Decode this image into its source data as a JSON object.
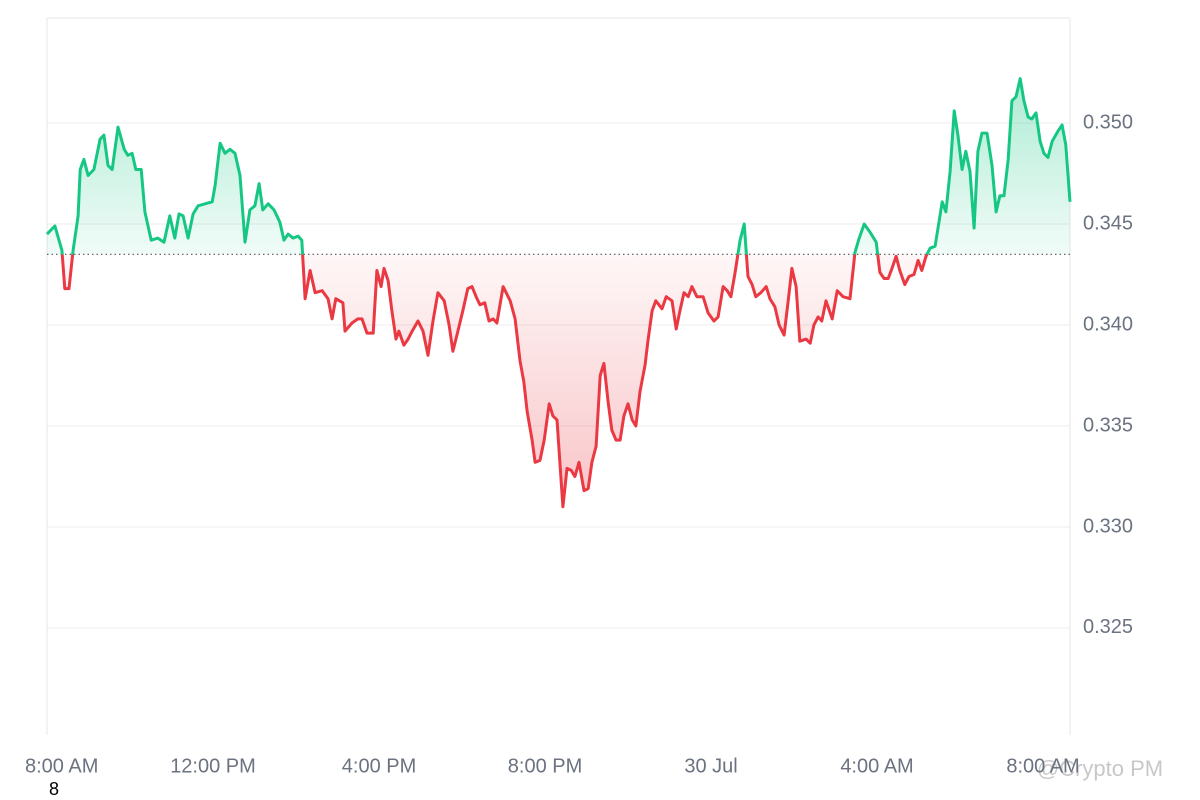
{
  "chart_data": {
    "type": "line",
    "x": [
      0,
      0.19,
      0.36,
      0.43,
      0.53,
      0.63,
      0.75,
      0.8,
      0.89,
      0.99,
      1.13,
      1.28,
      1.37,
      1.47,
      1.57,
      1.71,
      1.86,
      1.95,
      2.05,
      2.14,
      2.27,
      2.36,
      2.51,
      2.67,
      2.82,
      2.96,
      3.08,
      3.18,
      3.28,
      3.4,
      3.52,
      3.64,
      3.81,
      3.98,
      4.05,
      4.17,
      4.29,
      4.41,
      4.53,
      4.65,
      4.77,
      4.89,
      5.01,
      5.11,
      5.2,
      5.33,
      5.47,
      5.61,
      5.71,
      5.81,
      5.93,
      6.05,
      6.14,
      6.22,
      6.34,
      6.46,
      6.63,
      6.77,
      6.87,
      6.96,
      7.13,
      7.18,
      7.35,
      7.49,
      7.59,
      7.71,
      7.86,
      7.95,
      8.05,
      8.12,
      8.22,
      8.31,
      8.41,
      8.48,
      8.6,
      8.7,
      8.8,
      8.94,
      9.06,
      9.18,
      9.3,
      9.42,
      9.57,
      9.69,
      9.78,
      9.9,
      10.02,
      10.14,
      10.24,
      10.34,
      10.43,
      10.55,
      10.65,
      10.75,
      10.84,
      10.99,
      11.16,
      11.28,
      11.4,
      11.49,
      11.57,
      11.69,
      11.76,
      11.88,
      11.98,
      12.1,
      12.19,
      12.29,
      12.43,
      12.53,
      12.63,
      12.72,
      12.82,
      12.94,
      13.04,
      13.13,
      13.23,
      13.33,
      13.42,
      13.52,
      13.61,
      13.71,
      13.81,
      13.9,
      14.0,
      14.1,
      14.19,
      14.29,
      14.41,
      14.48,
      14.58,
      14.67,
      14.82,
      14.92,
      15.06,
      15.16,
      15.25,
      15.35,
      15.45,
      15.54,
      15.66,
      15.81,
      15.93,
      16.07,
      16.17,
      16.29,
      16.39,
      16.48,
      16.58,
      16.7,
      16.8,
      16.89,
      16.99,
      17.08,
      17.2,
      17.33,
      17.42,
      17.54,
      17.64,
      17.76,
      17.86,
      17.95,
      18.05,
      18.14,
      18.29,
      18.39,
      18.48,
      18.58,
      18.67,
      18.77,
      18.92,
      19.04,
      19.18,
      19.35,
      19.47,
      19.57,
      19.69,
      19.83,
      19.98,
      20.07,
      20.17,
      20.27,
      20.36,
      20.46,
      20.55,
      20.67,
      20.77,
      20.89,
      20.99,
      21.08,
      21.18,
      21.28,
      21.4,
      21.47,
      21.57,
      21.66,
      21.76,
      21.86,
      21.95,
      22.05,
      22.14,
      22.24,
      22.34,
      22.43,
      22.53,
      22.65,
      22.77,
      22.87,
      22.96,
      23.06,
      23.16,
      23.25,
      23.35,
      23.45,
      23.54,
      23.64,
      23.73,
      23.83,
      23.93,
      24.02,
      24.12,
      24.22,
      24.36,
      24.46,
      24.55,
      24.65
    ],
    "values": [
      0.3445,
      0.3449,
      0.3437,
      0.3418,
      0.3418,
      0.3437,
      0.3454,
      0.3477,
      0.3482,
      0.3474,
      0.3477,
      0.3492,
      0.3494,
      0.3479,
      0.3477,
      0.3498,
      0.3487,
      0.3484,
      0.3485,
      0.3477,
      0.3477,
      0.3456,
      0.3442,
      0.3443,
      0.3441,
      0.3454,
      0.3443,
      0.3455,
      0.3454,
      0.3443,
      0.3455,
      0.3459,
      0.346,
      0.3461,
      0.3469,
      0.349,
      0.3485,
      0.3487,
      0.3485,
      0.3474,
      0.3441,
      0.3457,
      0.3459,
      0.347,
      0.3457,
      0.346,
      0.3457,
      0.3451,
      0.3442,
      0.3445,
      0.3443,
      0.3444,
      0.3442,
      0.3413,
      0.3427,
      0.3416,
      0.3417,
      0.3413,
      0.3403,
      0.3413,
      0.3411,
      0.3397,
      0.3401,
      0.3403,
      0.3403,
      0.3396,
      0.3396,
      0.3427,
      0.3419,
      0.3428,
      0.3422,
      0.3407,
      0.3393,
      0.3397,
      0.339,
      0.3393,
      0.3397,
      0.3402,
      0.3397,
      0.3385,
      0.3402,
      0.3416,
      0.3412,
      0.34,
      0.3387,
      0.3397,
      0.3407,
      0.3418,
      0.3419,
      0.3414,
      0.341,
      0.3411,
      0.3402,
      0.3403,
      0.3401,
      0.3419,
      0.3412,
      0.3403,
      0.3382,
      0.3372,
      0.3357,
      0.3343,
      0.3332,
      0.3333,
      0.3343,
      0.3361,
      0.3355,
      0.3353,
      0.331,
      0.3329,
      0.3328,
      0.3325,
      0.3332,
      0.3318,
      0.3319,
      0.3332,
      0.334,
      0.3375,
      0.3381,
      0.3362,
      0.3348,
      0.3343,
      0.3343,
      0.3355,
      0.3361,
      0.3353,
      0.335,
      0.3367,
      0.338,
      0.3392,
      0.3407,
      0.3412,
      0.3408,
      0.3414,
      0.3412,
      0.3398,
      0.3407,
      0.3416,
      0.3414,
      0.3419,
      0.3414,
      0.3414,
      0.3406,
      0.3402,
      0.3404,
      0.3419,
      0.3417,
      0.3414,
      0.3426,
      0.3442,
      0.345,
      0.3424,
      0.342,
      0.3414,
      0.3416,
      0.3419,
      0.3413,
      0.3409,
      0.34,
      0.3395,
      0.3412,
      0.3428,
      0.3419,
      0.3392,
      0.3393,
      0.3391,
      0.34,
      0.3404,
      0.3402,
      0.3412,
      0.3403,
      0.3417,
      0.3414,
      0.3413,
      0.3436,
      0.3443,
      0.345,
      0.3446,
      0.3441,
      0.3426,
      0.3423,
      0.3423,
      0.3428,
      0.3434,
      0.3427,
      0.342,
      0.3424,
      0.3425,
      0.3432,
      0.3427,
      0.3434,
      0.3438,
      0.3439,
      0.3448,
      0.3461,
      0.3456,
      0.3476,
      0.3506,
      0.3494,
      0.3477,
      0.3486,
      0.3476,
      0.3448,
      0.3486,
      0.3495,
      0.3495,
      0.3479,
      0.3456,
      0.3464,
      0.3464,
      0.3482,
      0.3511,
      0.3513,
      0.3522,
      0.3511,
      0.3503,
      0.3502,
      0.3505,
      0.3491,
      0.3485,
      0.3483,
      0.3491,
      0.3496,
      0.3499,
      0.3489,
      0.3461
    ],
    "reference_value": 0.3435,
    "color_up": "#16c784",
    "color_down": "#ea3943",
    "xlim": [
      0,
      24.65
    ],
    "xticks": [
      {
        "value": 0,
        "label": "8:00 AM"
      },
      {
        "value": 4,
        "label": "12:00 PM"
      },
      {
        "value": 8,
        "label": "4:00 PM"
      },
      {
        "value": 12,
        "label": "8:00 PM"
      },
      {
        "value": 16,
        "label": "30 Jul"
      },
      {
        "value": 20,
        "label": "4:00 AM"
      },
      {
        "value": 24,
        "label": "8:00 AM"
      }
    ],
    "ylim": [
      0.3197,
      0.3552
    ],
    "yticks": [
      {
        "value": 0.325,
        "label": "0.325"
      },
      {
        "value": 0.33,
        "label": "0.330"
      },
      {
        "value": 0.335,
        "label": "0.335"
      },
      {
        "value": 0.34,
        "label": "0.340"
      },
      {
        "value": 0.345,
        "label": "0.345"
      },
      {
        "value": 0.35,
        "label": "0.350"
      }
    ],
    "grid": true,
    "watermark": "@Crypto PM",
    "annotation": "8"
  }
}
